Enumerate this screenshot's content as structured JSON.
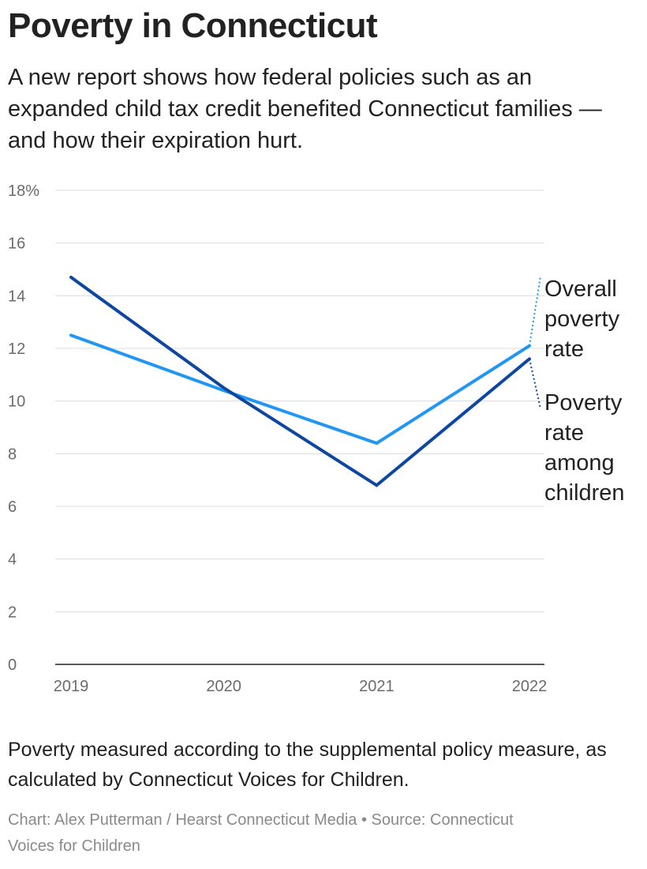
{
  "header": {
    "title": "Poverty in Connecticut",
    "subtitle": "A new report shows how federal policies such as an expanded child tax credit benefited Connecticut families — and how their expiration hurt."
  },
  "chart_data": {
    "type": "line",
    "x": [
      "2019",
      "2020",
      "2021",
      "2022"
    ],
    "y_ticks": [
      "0",
      "2",
      "4",
      "6",
      "8",
      "10",
      "12",
      "14",
      "16",
      "18%"
    ],
    "y_tick_values": [
      0,
      2,
      4,
      6,
      8,
      10,
      12,
      14,
      16,
      18
    ],
    "ylim": [
      0,
      18
    ],
    "grid": true,
    "legend_placement": "right, inline labels",
    "series": [
      {
        "name": "Overall poverty rate",
        "label_lines": [
          "Overall",
          "poverty",
          "rate"
        ],
        "color": "#2196f3",
        "values": [
          12.5,
          10.4,
          8.4,
          12.1
        ]
      },
      {
        "name": "Poverty rate among children",
        "label_lines": [
          "Poverty",
          "rate",
          "among",
          "children"
        ],
        "color": "#0d47a1",
        "values": [
          14.7,
          10.5,
          6.8,
          11.6
        ]
      }
    ]
  },
  "footer": {
    "note": "Poverty measured according to the supplemental policy measure, as calculated by Connecticut Voices for Children.",
    "credit": "Chart: Alex Putterman / Hearst Connecticut Media • Source: Connecticut Voices for Children"
  }
}
